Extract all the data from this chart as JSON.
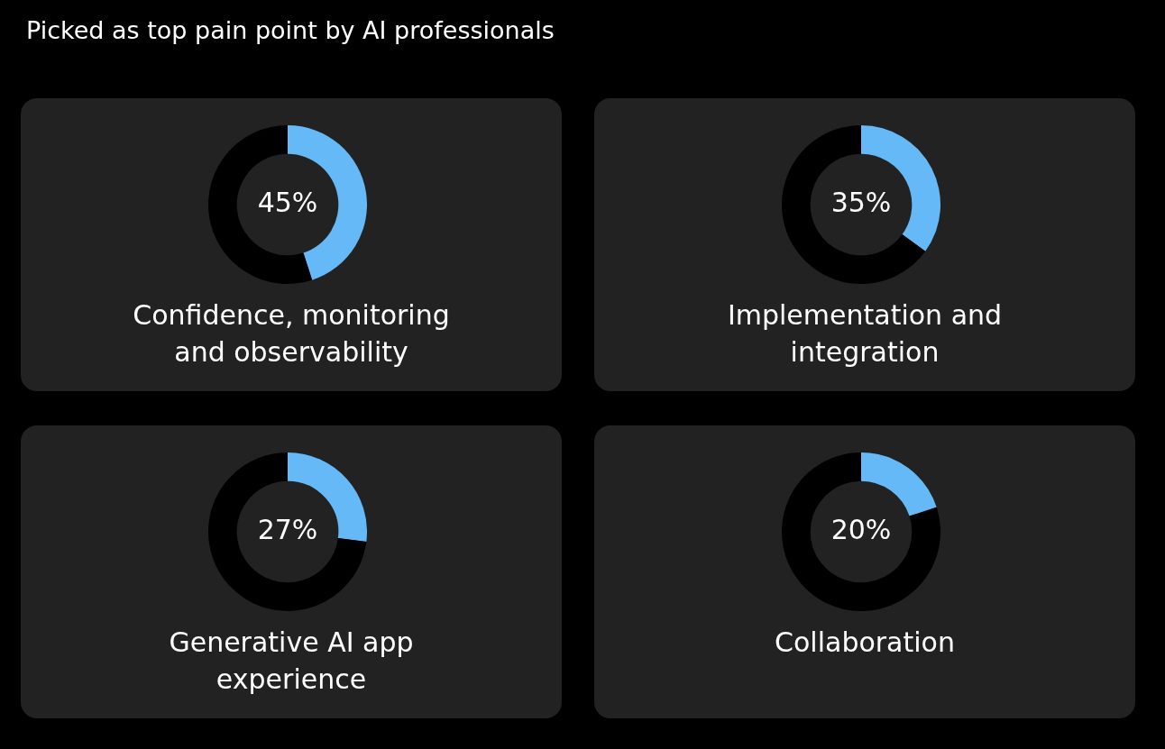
{
  "chart_data": [
    {
      "type": "other",
      "title": "Picked as top pain point by AI professionals"
    },
    {
      "type": "donut",
      "title": "Confidence, monitoring and observability",
      "categories": [
        null,
        null
      ],
      "values": [
        45,
        55
      ],
      "colors": [
        "#64b9f6",
        "#000000"
      ],
      "value_labels": [
        "45%",
        null
      ]
    },
    {
      "type": "donut",
      "title": "Implementation and integration",
      "categories": [
        null,
        null
      ],
      "values": [
        35,
        65
      ],
      "colors": [
        "#64b9f6",
        "#000000"
      ],
      "value_labels": [
        "35%",
        null
      ]
    },
    {
      "type": "donut",
      "title": "Generative AI app experience",
      "categories": [
        null,
        null
      ],
      "values": [
        27,
        73
      ],
      "colors": [
        "#64b9f6",
        "#000000"
      ],
      "value_labels": [
        "27%",
        null
      ]
    },
    {
      "type": "donut",
      "title": "Collaboration",
      "categories": [
        null,
        null
      ],
      "values": [
        20,
        80
      ],
      "colors": [
        "#64b9f6",
        "#000000"
      ],
      "value_labels": [
        "20%",
        null
      ]
    }
  ]
}
